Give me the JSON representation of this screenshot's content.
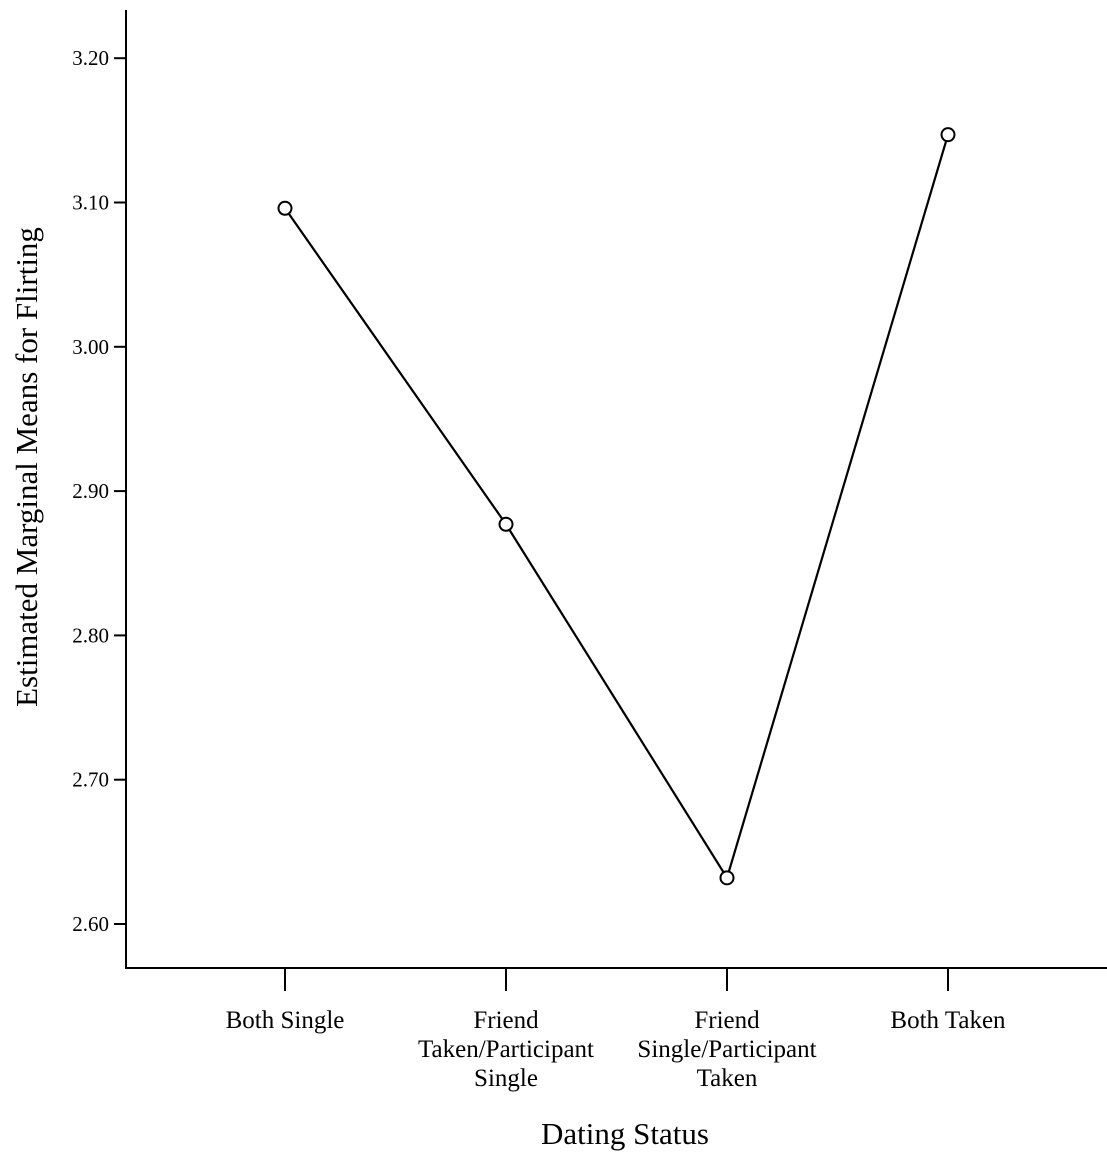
{
  "chart_data": {
    "type": "line",
    "title": "",
    "xlabel": "Dating Status",
    "ylabel": "Estimated Marginal Means for Flirting",
    "categories": [
      [
        "Both Single"
      ],
      [
        "Friend",
        "Taken/Participant",
        "Single"
      ],
      [
        "Friend",
        "Single/Participant",
        "Taken"
      ],
      [
        "Both Taken"
      ]
    ],
    "series": [
      {
        "values": [
          3.096,
          2.877,
          2.632,
          3.147
        ],
        "color": "#000000",
        "marker": "open-circle"
      }
    ],
    "ylim": [
      2.565,
      3.265
    ],
    "yticks": [
      "2.60",
      "2.70",
      "2.80",
      "2.90",
      "3.00",
      "3.10",
      "3.20"
    ],
    "grid": false,
    "legend": "none"
  }
}
